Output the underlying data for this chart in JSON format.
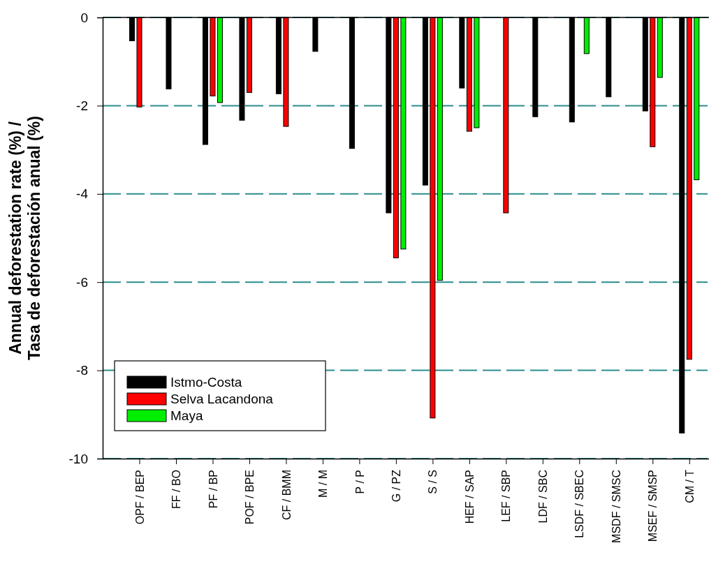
{
  "chart_data": {
    "type": "bar",
    "ylabel": "Annual deforestation rate (%) /\nTasa de deforestación anual (%)",
    "categories": [
      "OPF / BEP",
      "FF / BO",
      "PF / BP",
      "POF / BPE",
      "CF / BMM",
      "M / M",
      "P / P",
      "G / PZ",
      "S / S",
      "HEF / SAP",
      "LEF / SBP",
      "LDF / SBC",
      "LSDF / SBEC",
      "MSDF / SMSC",
      "MSEF / SMSP",
      "CM / T"
    ],
    "series": [
      {
        "name": "Istmo-Costa",
        "color": "#000000",
        "values": [
          -0.53,
          -1.62,
          -2.88,
          -2.33,
          -1.73,
          -0.77,
          -2.97,
          -4.43,
          -3.8,
          -1.6,
          null,
          -2.25,
          -2.37,
          -1.8,
          -2.12,
          -9.42
        ]
      },
      {
        "name": "Selva Lacandona",
        "color": "#ff0000",
        "values": [
          -2.03,
          null,
          -1.78,
          -1.7,
          -2.47,
          null,
          null,
          -5.45,
          -9.08,
          -2.58,
          -4.43,
          null,
          null,
          null,
          -2.93,
          -7.75
        ]
      },
      {
        "name": "Maya",
        "color": "#00ee00",
        "values": [
          null,
          null,
          -1.93,
          null,
          null,
          null,
          null,
          -5.25,
          -5.96,
          -2.5,
          null,
          null,
          -0.82,
          null,
          -1.36,
          -3.68
        ]
      }
    ],
    "ylim": [
      -10,
      0
    ],
    "yticks": [
      0,
      -2,
      -4,
      -6,
      -8,
      -10
    ],
    "grid": "y",
    "legend": "bottom left"
  }
}
